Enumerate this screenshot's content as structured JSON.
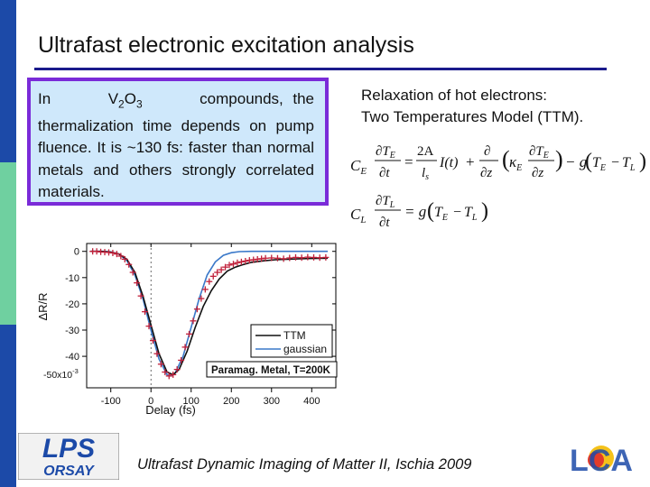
{
  "slide": {
    "title": "Ultrafast electronic excitation analysis",
    "callout": {
      "pre": "In",
      "formula_v": "V",
      "formula_v_sub": "2",
      "formula_o": "O",
      "formula_o_sub": "3",
      "post": "compounds, the thermalization time depends on pump fluence. It is ~130 fs: faster than normal metals and others strongly correlated materials."
    },
    "ttm_caption_line1": "Relaxation of hot electrons:",
    "ttm_caption_line2": "Two Temperatures Model (TTM).",
    "footer": "Ultrafast Dynamic Imaging of Matter II, Ischia 2009",
    "logo_left_line1": "LPS",
    "logo_left_line2": "ORSAY",
    "logo_right_text": "LCA"
  },
  "equations": {
    "eq1": {
      "lhs_coef": "C",
      "lhs_coef_sub": "E",
      "num_dT": "∂T",
      "num_sub_E": "E",
      "den_dt": "∂t",
      "eq_sign": "=",
      "two_A": "2A",
      "l_s": "l",
      "l_s_sub": "s",
      "I_t": "I(t)",
      "plus": "+",
      "d": "∂",
      "dz": "∂z",
      "kappa": "κ",
      "kappa_sub": "E",
      "minus_g": "− g",
      "paren_open": "(",
      "T_E": "T",
      "T_E_sub": "E",
      "minus": "−",
      "T_L": "T",
      "T_L_sub": "L",
      "paren_close": ")"
    },
    "eq2": {
      "lhs_coef": "C",
      "lhs_coef_sub": "L",
      "num_dT": "∂T",
      "num_sub_L": "L",
      "den_dt": "∂t",
      "eq_sign": "= g",
      "paren_open": "(",
      "T_E": "T",
      "T_E_sub": "E",
      "minus": "−",
      "T_L": "T",
      "T_L_sub": "L",
      "paren_close": ")"
    }
  },
  "chart_data": {
    "type": "line",
    "xlabel": "Delay (fs)",
    "ylabel": "ΔR/R",
    "y_exponent_label": "-50x10",
    "y_exponent_power": "-3",
    "xlim": [
      -160,
      460
    ],
    "ylim": [
      -52,
      3
    ],
    "x_ticks": [
      -100,
      0,
      100,
      200,
      300,
      400
    ],
    "x_tick_labels": [
      "-100",
      "0",
      "100",
      "200",
      "300",
      "400"
    ],
    "y_ticks": [
      0,
      -10,
      -20,
      -30,
      -40
    ],
    "y_tick_labels": [
      "0",
      "-10",
      "-20",
      "-30",
      "-40"
    ],
    "legend_position": "bottom-right",
    "annotation": "Paramag. Metal, T=200K",
    "colors": {
      "ttm": "#111111",
      "gaussian": "#3a78c9",
      "data": "#c0203a",
      "frame": "#000000"
    },
    "series": [
      {
        "name": "TTM",
        "x": [
          -150,
          -125,
          -100,
          -80,
          -60,
          -40,
          -20,
          0,
          20,
          40,
          55,
          70,
          90,
          110,
          130,
          150,
          170,
          190,
          210,
          230,
          250,
          280,
          310,
          340,
          370,
          400,
          440
        ],
        "y": [
          0,
          0,
          -0.3,
          -1,
          -3,
          -8,
          -17,
          -28,
          -39,
          -46,
          -47,
          -45,
          -38,
          -29,
          -21,
          -15,
          -10.5,
          -7.5,
          -6,
          -5,
          -4.2,
          -3.6,
          -3.2,
          -3,
          -2.8,
          -2.7,
          -2.6
        ]
      },
      {
        "name": "gaussian",
        "x": [
          -150,
          -120,
          -100,
          -80,
          -60,
          -40,
          -20,
          0,
          20,
          40,
          50,
          60,
          80,
          100,
          120,
          140,
          160,
          180,
          200,
          220,
          250,
          300,
          350,
          400,
          440
        ],
        "y": [
          0,
          0,
          -0.2,
          -1,
          -3.5,
          -9,
          -18,
          -30,
          -41,
          -47,
          -47.5,
          -46.5,
          -40,
          -29,
          -18,
          -9,
          -4,
          -1.5,
          -0.5,
          -0.1,
          0,
          0,
          0,
          0,
          0
        ]
      },
      {
        "name": "data",
        "x": [
          -145,
          -135,
          -125,
          -115,
          -105,
          -95,
          -85,
          -75,
          -65,
          -55,
          -45,
          -35,
          -25,
          -15,
          -5,
          5,
          15,
          25,
          35,
          45,
          55,
          65,
          75,
          85,
          95,
          105,
          115,
          125,
          135,
          145,
          155,
          165,
          175,
          185,
          195,
          205,
          215,
          225,
          235,
          245,
          255,
          265,
          275,
          285,
          300,
          315,
          330,
          345,
          360,
          375,
          390,
          405,
          420,
          435
        ],
        "y": [
          0,
          0,
          -0.2,
          -0.3,
          -0.4,
          -0.6,
          -1,
          -1.8,
          -3,
          -5,
          -8,
          -12,
          -17,
          -23,
          -28.5,
          -34,
          -39,
          -43,
          -46,
          -47.5,
          -47,
          -45,
          -41.5,
          -36.5,
          -31.5,
          -26.5,
          -22,
          -18,
          -14.5,
          -11.5,
          -9.5,
          -8,
          -7,
          -6,
          -5.2,
          -4.8,
          -4.3,
          -4,
          -3.7,
          -3.4,
          -3.2,
          -3,
          -2.8,
          -2.6,
          -2.5,
          -2.6,
          -2.8,
          -2.5,
          -2.3,
          -2.4,
          -2.2,
          -2.3,
          -2.4,
          -2.3
        ]
      }
    ]
  }
}
